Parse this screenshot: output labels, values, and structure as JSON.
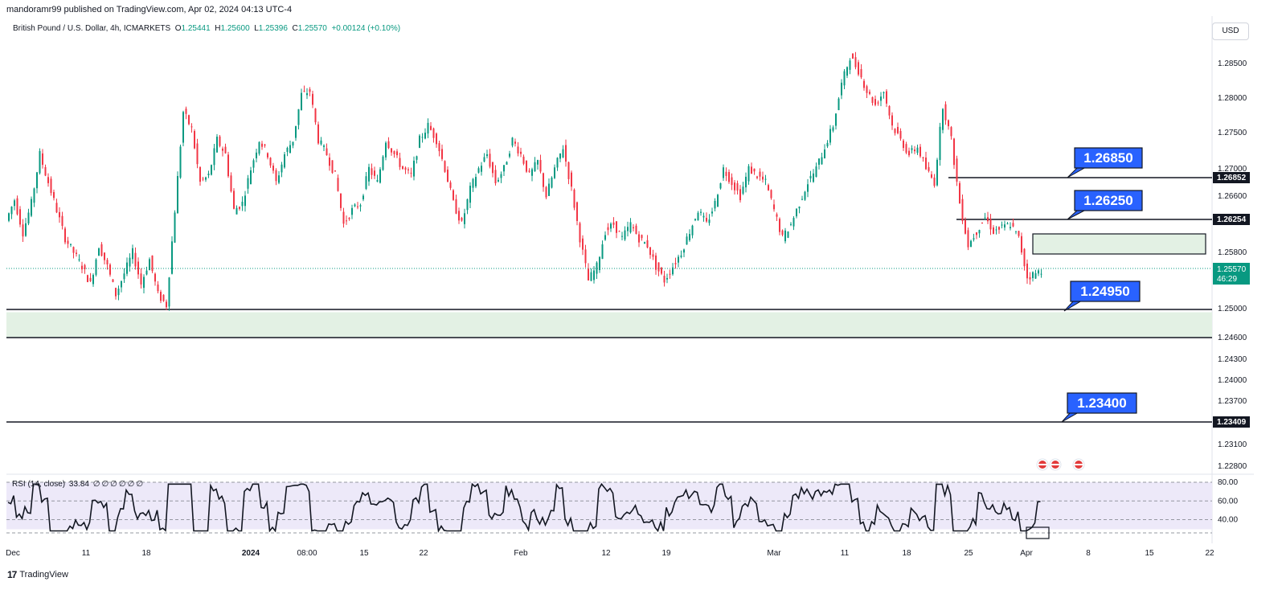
{
  "header": {
    "publisher": "mandoramr99 published on TradingView.com, Apr 02, 2024 04:13 UTC-4",
    "symbol": "British Pound / U.S. Dollar, 4h, ICMARKETS",
    "o_label": "O",
    "o": "1.25441",
    "h_label": "H",
    "h": "1.25600",
    "l_label": "L",
    "l": "1.25396",
    "c_label": "C",
    "c": "1.25570",
    "change": "+0.00124 (+0.10%)",
    "currency": "USD"
  },
  "rsi": {
    "label": "RSI (14, close)",
    "value": "33.84",
    "extras": [
      "∅",
      "∅",
      "∅",
      "∅",
      "∅",
      "∅"
    ],
    "levels": [
      80,
      60,
      40
    ],
    "level_labels": [
      "80.00",
      "60.00",
      "40.00"
    ]
  },
  "footer": {
    "brand": "TradingView"
  },
  "colors": {
    "up": "#089981",
    "down": "#f23645",
    "zone_fill": "#e3f1e4",
    "rsi_band": "#ede9f9",
    "callout": "#2962ff"
  },
  "chart_data": {
    "type": "candlestick",
    "title": "British Pound / U.S. Dollar, 4h, ICMARKETS",
    "y_axis_ticks": [
      "1.28500",
      "1.28000",
      "1.27500",
      "1.27000",
      "1.26600",
      "1.25800",
      "1.25000",
      "1.24600",
      "1.24300",
      "1.24000",
      "1.23700",
      "1.23400",
      "1.23100",
      "1.22800"
    ],
    "x_axis_ticks": [
      "Dec",
      "11",
      "18",
      "2024",
      "08:00",
      "15",
      "22",
      "Feb",
      "12",
      "19",
      "Mar",
      "11",
      "18",
      "25",
      "Apr",
      "8",
      "15",
      "22"
    ],
    "x_bold_ticks": [
      "2024"
    ],
    "last_price": "1.25570",
    "countdown": "46:29",
    "price_path": [
      1.2625,
      1.2655,
      1.2608,
      1.265,
      1.272,
      1.268,
      1.264,
      1.26,
      1.258,
      1.256,
      1.2535,
      1.259,
      1.256,
      1.252,
      1.255,
      1.258,
      1.2535,
      1.257,
      1.252,
      1.2505,
      1.264,
      1.278,
      1.2755,
      1.268,
      1.269,
      1.274,
      1.272,
      1.264,
      1.265,
      1.27,
      1.274,
      1.272,
      1.268,
      1.272,
      1.274,
      1.2805,
      1.281,
      1.274,
      1.272,
      1.269,
      1.262,
      1.264,
      1.265,
      1.27,
      1.268,
      1.274,
      1.272,
      1.27,
      1.269,
      1.274,
      1.276,
      1.274,
      1.27,
      1.265,
      1.262,
      1.267,
      1.27,
      1.272,
      1.268,
      1.27,
      1.274,
      1.272,
      1.269,
      1.271,
      1.266,
      1.27,
      1.273,
      1.267,
      1.26,
      1.254,
      1.256,
      1.261,
      1.262,
      1.26,
      1.262,
      1.26,
      1.259,
      1.256,
      1.254,
      1.256,
      1.258,
      1.261,
      1.264,
      1.262,
      1.265,
      1.27,
      1.268,
      1.266,
      1.27,
      1.269,
      1.268,
      1.264,
      1.26,
      1.262,
      1.265,
      1.268,
      1.27,
      1.273,
      1.276,
      1.282,
      1.286,
      1.284,
      1.281,
      1.279,
      1.281,
      1.276,
      1.274,
      1.272,
      1.273,
      1.27,
      1.268,
      1.279,
      1.274,
      1.265,
      1.259,
      1.261,
      1.263,
      1.261,
      1.2615,
      1.262,
      1.26,
      1.2545,
      1.255,
      1.2557
    ],
    "key_levels": [
      {
        "label": "1.26850",
        "axis_label": "1.26852"
      },
      {
        "label": "1.26250",
        "axis_label": "1.26254"
      },
      {
        "label": "1.24950",
        "axis_label": ""
      },
      {
        "label": "1.23400",
        "axis_label": "1.23409"
      }
    ],
    "zones": [
      {
        "type": "support",
        "top": 1.2495,
        "bottom": 1.246
      },
      {
        "type": "supply",
        "top": 1.2592,
        "bottom": 1.2578
      }
    ]
  }
}
